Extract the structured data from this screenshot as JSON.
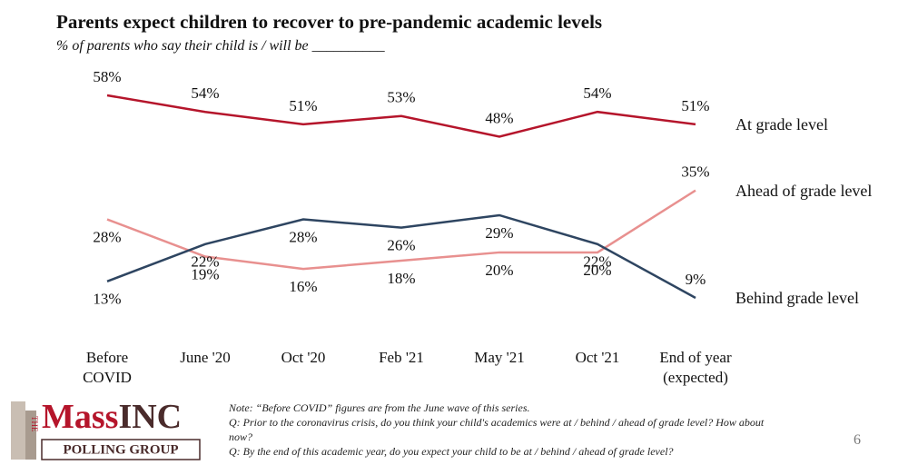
{
  "chart_data": {
    "type": "line",
    "title": "Parents expect children to recover to pre-pandemic academic levels",
    "subtitle": "% of parents who say their child is / will be __________",
    "categories": [
      "Before COVID",
      "June '20",
      "Oct '20",
      "Feb '21",
      "May '21",
      "Oct '21",
      "End of year (expected)"
    ],
    "series": [
      {
        "name": "At grade level",
        "color": "#b5152b",
        "values": [
          58,
          54,
          51,
          53,
          48,
          54,
          51
        ],
        "value_labels": [
          "58%",
          "54%",
          "51%",
          "53%",
          "48%",
          "54%",
          "51%"
        ]
      },
      {
        "name": "Ahead of grade level",
        "color": "#e8908f",
        "values": [
          28,
          19,
          16,
          18,
          20,
          20,
          35
        ],
        "value_labels": [
          "28%",
          "19%",
          "16%",
          "18%",
          "20%",
          "20%",
          "35%"
        ]
      },
      {
        "name": "Behind grade level",
        "color": "#2e4561",
        "values": [
          13,
          22,
          28,
          26,
          29,
          22,
          9
        ],
        "value_labels": [
          "13%",
          "22%",
          "28%",
          "26%",
          "29%",
          "22%",
          "9%"
        ]
      }
    ]
  },
  "notes": [
    "Note: “Before COVID” figures are from the June wave of this series.",
    "Q: Prior to the coronavirus crisis, do you think your child's academics were at / behind / ahead of grade level? How about now?",
    "Q: By the end of this academic year, do you expect your child to be at / behind / ahead of grade level?"
  ],
  "logo": {
    "the": "THE",
    "mass": "Mass",
    "inc": "INC",
    "tagline": "POLLING GROUP"
  },
  "page_number": "6"
}
